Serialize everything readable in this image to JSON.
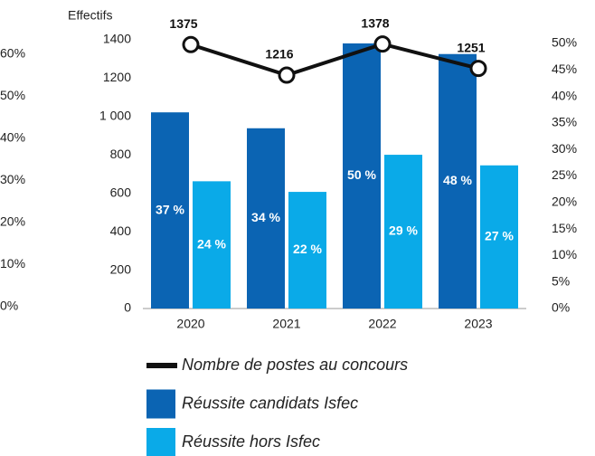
{
  "chart_data": {
    "type": "bar-line",
    "y_label": "Effectifs",
    "categories": [
      "2020",
      "2021",
      "2022",
      "2023"
    ],
    "ylim": [
      0,
      1400
    ],
    "yticks": [
      0,
      200,
      400,
      600,
      800,
      {
        "value": 1000,
        "label": "1 000"
      },
      1200,
      1400
    ],
    "y2lim": [
      0,
      50
    ],
    "y2ticks": [
      {
        "value": 0,
        "label": "0%"
      },
      {
        "value": 5,
        "label": "5%"
      },
      {
        "value": 10,
        "label": "10%"
      },
      {
        "value": 15,
        "label": "15%"
      },
      {
        "value": 20,
        "label": "20%"
      },
      {
        "value": 25,
        "label": "25%"
      },
      {
        "value": 30,
        "label": "30%"
      },
      {
        "value": 35,
        "label": "35%"
      },
      {
        "value": 40,
        "label": "40%"
      },
      {
        "value": 45,
        "label": "45%"
      },
      {
        "value": 50,
        "label": "50%"
      }
    ],
    "y3lim": [
      0,
      60
    ],
    "y3ticks": [
      {
        "value": 0,
        "label": "0%"
      },
      {
        "value": 10,
        "label": "10%"
      },
      {
        "value": 20,
        "label": "20%"
      },
      {
        "value": 30,
        "label": "30%"
      },
      {
        "value": 40,
        "label": "40%"
      },
      {
        "value": 50,
        "label": "50%"
      },
      {
        "value": 60,
        "label": "60%"
      }
    ],
    "series": [
      {
        "name": "Nombre de postes au concours",
        "type": "line",
        "color": "#111111",
        "values": [
          1375,
          1216,
          1378,
          1251
        ]
      },
      {
        "name": "Réussite candidats Isfec",
        "type": "bar",
        "axis": "y2",
        "color": "#0b64b3",
        "values": [
          37,
          34,
          50,
          48
        ],
        "value_labels": [
          "37 %",
          "34 %",
          "50 %",
          "48 %"
        ]
      },
      {
        "name": "Réussite hors Isfec",
        "type": "bar",
        "axis": "y2",
        "color": "#0aaae8",
        "values": [
          24,
          22,
          29,
          27
        ],
        "value_labels": [
          "24 %",
          "22 %",
          "29 %",
          "27 %"
        ]
      }
    ]
  }
}
